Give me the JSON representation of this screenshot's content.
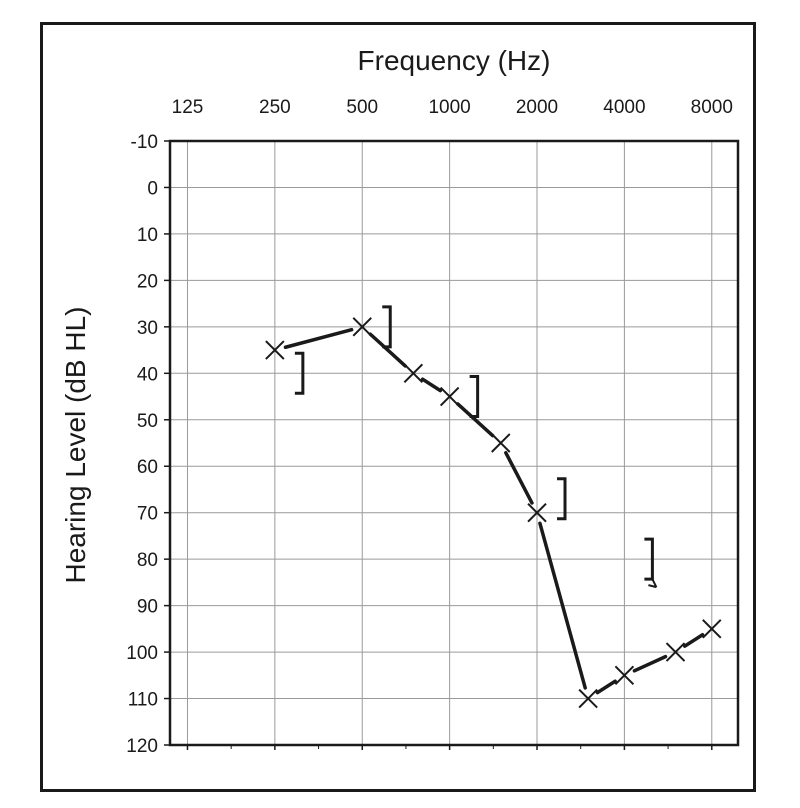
{
  "chart_data": {
    "type": "line",
    "title": "Frequency (Hz)",
    "xlabel": "Frequency (Hz)",
    "ylabel": "Hearing Level (dB HL)",
    "x_scale": "log2",
    "x_ticks": [
      "125",
      "250",
      "500",
      "1000",
      "2000",
      "4000",
      "8000"
    ],
    "x_tick_values": [
      125,
      250,
      500,
      1000,
      2000,
      4000,
      8000
    ],
    "y_ticks": [
      "-10",
      "0",
      "10",
      "20",
      "30",
      "40",
      "50",
      "60",
      "70",
      "80",
      "90",
      "100",
      "110",
      "120"
    ],
    "ylim": [
      -10,
      120
    ],
    "y_inverted": true,
    "grid": true,
    "series": [
      {
        "symbol": "X",
        "connected": true,
        "points": [
          {
            "x": 250,
            "y": 35
          },
          {
            "x": 500,
            "y": 30
          },
          {
            "x": 750,
            "y": 40
          },
          {
            "x": 1000,
            "y": 45
          },
          {
            "x": 1500,
            "y": 55
          },
          {
            "x": 2000,
            "y": 70
          },
          {
            "x": 3000,
            "y": 110
          },
          {
            "x": 4000,
            "y": 105
          },
          {
            "x": 6000,
            "y": 100
          },
          {
            "x": 8000,
            "y": 95
          }
        ]
      },
      {
        "symbol": "]",
        "connected": false,
        "points": [
          {
            "x": 250,
            "y": 40
          },
          {
            "x": 500,
            "y": 30
          },
          {
            "x": 1000,
            "y": 45
          },
          {
            "x": 2000,
            "y": 67
          },
          {
            "x": 4000,
            "y": 80,
            "no_response": true
          }
        ]
      }
    ],
    "colors": {
      "ink": "#1a1a1a",
      "grid": "#9a9a9a"
    }
  }
}
